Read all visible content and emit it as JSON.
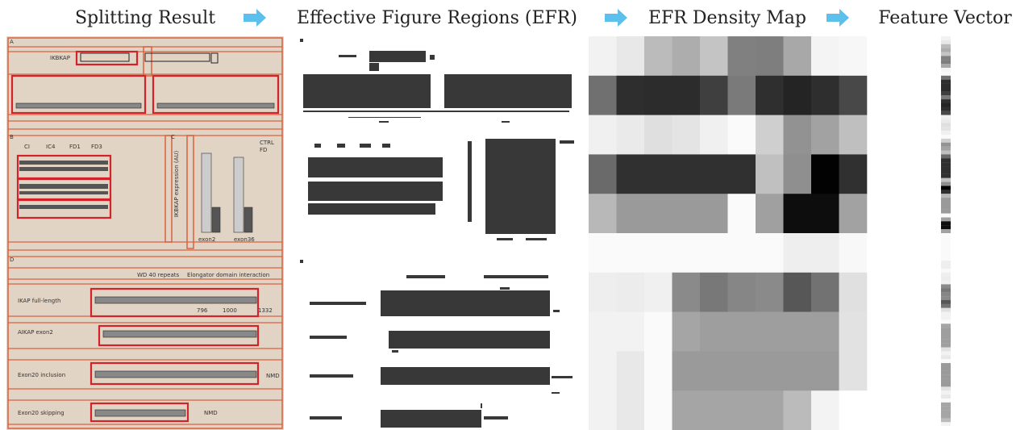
{
  "header": {
    "steps": [
      "Splitting Result",
      "Effective Figure Regions (EFR)",
      "EFR Density Map",
      "Feature Vector"
    ]
  },
  "figure": {
    "labels": [
      "A",
      "IKBKAP",
      "B",
      "CI",
      "IC4",
      "FD1",
      "FD3",
      "C",
      "CTRL",
      "FD",
      "exon2",
      "exon36",
      "IKBKAP expression (AU)",
      "D",
      "WD 40 repeats",
      "Elongator domain interaction",
      "IKAP full-length",
      "796",
      "1000",
      "1332",
      "AIKAP exon2",
      "Exon20 inclusion",
      "NMD",
      "Exon20 skipping"
    ]
  }
}
